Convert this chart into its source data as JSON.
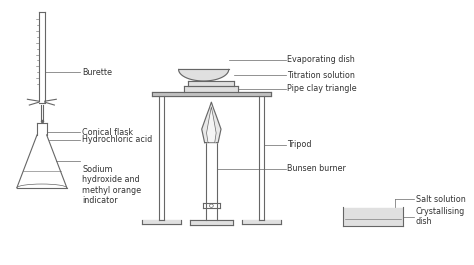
{
  "bg_color": "#ffffff",
  "line_color": "#666666",
  "label_color": "#333333",
  "fill_light": "#e0e0e0",
  "fill_medium": "#c0c0c0",
  "font_size": 5.8,
  "fig_width": 4.74,
  "fig_height": 2.65,
  "labels": {
    "burette": "Burette",
    "conical_flask": "Conical flask",
    "hcl": "Hydrochloric acid",
    "naoh": "Sodium\nhydroxide and\nmethyl orange\nindicator",
    "evaporating_dish": "Evaporating dish",
    "titration_solution": "Titration solution",
    "pipe_clay": "Pipe clay triangle",
    "tripod": "Tripod",
    "bunsen": "Bunsen burner",
    "salt_solution": "Salt solution",
    "crystallising": "Crystallising\ndish"
  }
}
